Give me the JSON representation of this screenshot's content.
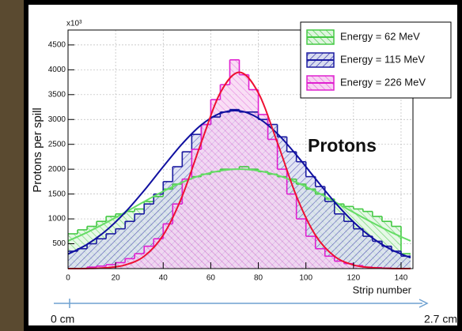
{
  "chart_data": {
    "type": "histogram",
    "y_label": "Protons per spill",
    "x_label": "Strip number",
    "y_multiplier": "x10³",
    "annotation": "Protons",
    "scale_start": "0 cm",
    "scale_end": "2.7 cm",
    "xlim": [
      0,
      145
    ],
    "ylim": [
      0,
      4800
    ],
    "xticks": [
      0,
      20,
      40,
      60,
      80,
      100,
      120,
      140
    ],
    "yticks": [
      500,
      1000,
      1500,
      2000,
      2500,
      3000,
      3500,
      4000,
      4500
    ],
    "grid": true,
    "legend": "upper right",
    "bins": [
      0,
      4,
      8,
      12,
      16,
      20,
      24,
      28,
      32,
      36,
      40,
      44,
      48,
      52,
      56,
      60,
      64,
      68,
      72,
      76,
      80,
      84,
      88,
      92,
      96,
      100,
      104,
      108,
      112,
      116,
      120,
      124,
      128,
      132,
      136,
      140,
      144
    ],
    "series": [
      {
        "name": "Energy = 62 MeV",
        "color": "#44c944",
        "values": [
          700,
          780,
          850,
          950,
          1050,
          1100,
          1150,
          1200,
          1350,
          1450,
          1600,
          1700,
          1800,
          1850,
          1900,
          1950,
          2000,
          2000,
          2050,
          2000,
          1950,
          1900,
          1850,
          1800,
          1700,
          1600,
          1500,
          1400,
          1300,
          1250,
          1200,
          1150,
          1050,
          950,
          850,
          300
        ]
      },
      {
        "name": "Energy = 115 MeV",
        "color": "#1a1aa0",
        "values": [
          350,
          400,
          500,
          600,
          700,
          800,
          950,
          1100,
          1300,
          1500,
          1750,
          2050,
          2350,
          2700,
          2900,
          3050,
          3150,
          3200,
          3150,
          3150,
          3000,
          2900,
          2650,
          2350,
          2150,
          1850,
          1650,
          1350,
          1100,
          950,
          800,
          650,
          550,
          450,
          350,
          250
        ]
      },
      {
        "name": "Energy = 226 MeV",
        "color": "#e020d0",
        "values": [
          0,
          0,
          30,
          50,
          80,
          120,
          200,
          300,
          450,
          600,
          900,
          1300,
          1800,
          2400,
          2900,
          3400,
          3700,
          4200,
          3900,
          3600,
          3100,
          2600,
          2000,
          1500,
          1000,
          650,
          400,
          250,
          150,
          100,
          60,
          30,
          20,
          10,
          0,
          0
        ]
      }
    ],
    "fit_curves": {
      "x": [
        0,
        8,
        16,
        24,
        32,
        40,
        48,
        56,
        64,
        72,
        80,
        88,
        96,
        104,
        112,
        120,
        128,
        136,
        144
      ],
      "series": [
        {
          "color": "#66dd66",
          "values": [
            556,
            728,
            923,
            1132,
            1347,
            1553,
            1735,
            1878,
            1968,
            2000,
            1968,
            1878,
            1735,
            1553,
            1347,
            1132,
            923,
            728,
            556
          ]
        },
        {
          "color": "#1010a0",
          "values": [
            291,
            487,
            765,
            1132,
            1571,
            2050,
            2511,
            2890,
            3124,
            3174,
            3027,
            2715,
            2286,
            1809,
            1344,
            938,
            615,
            379,
            219
          ]
        },
        {
          "color": "#ee1133",
          "values": [
            0,
            2,
            17,
            73,
            248,
            672,
            1458,
            2536,
            3536,
            3950,
            3536,
            2536,
            1458,
            672,
            248,
            73,
            17,
            2,
            0
          ]
        }
      ]
    }
  }
}
